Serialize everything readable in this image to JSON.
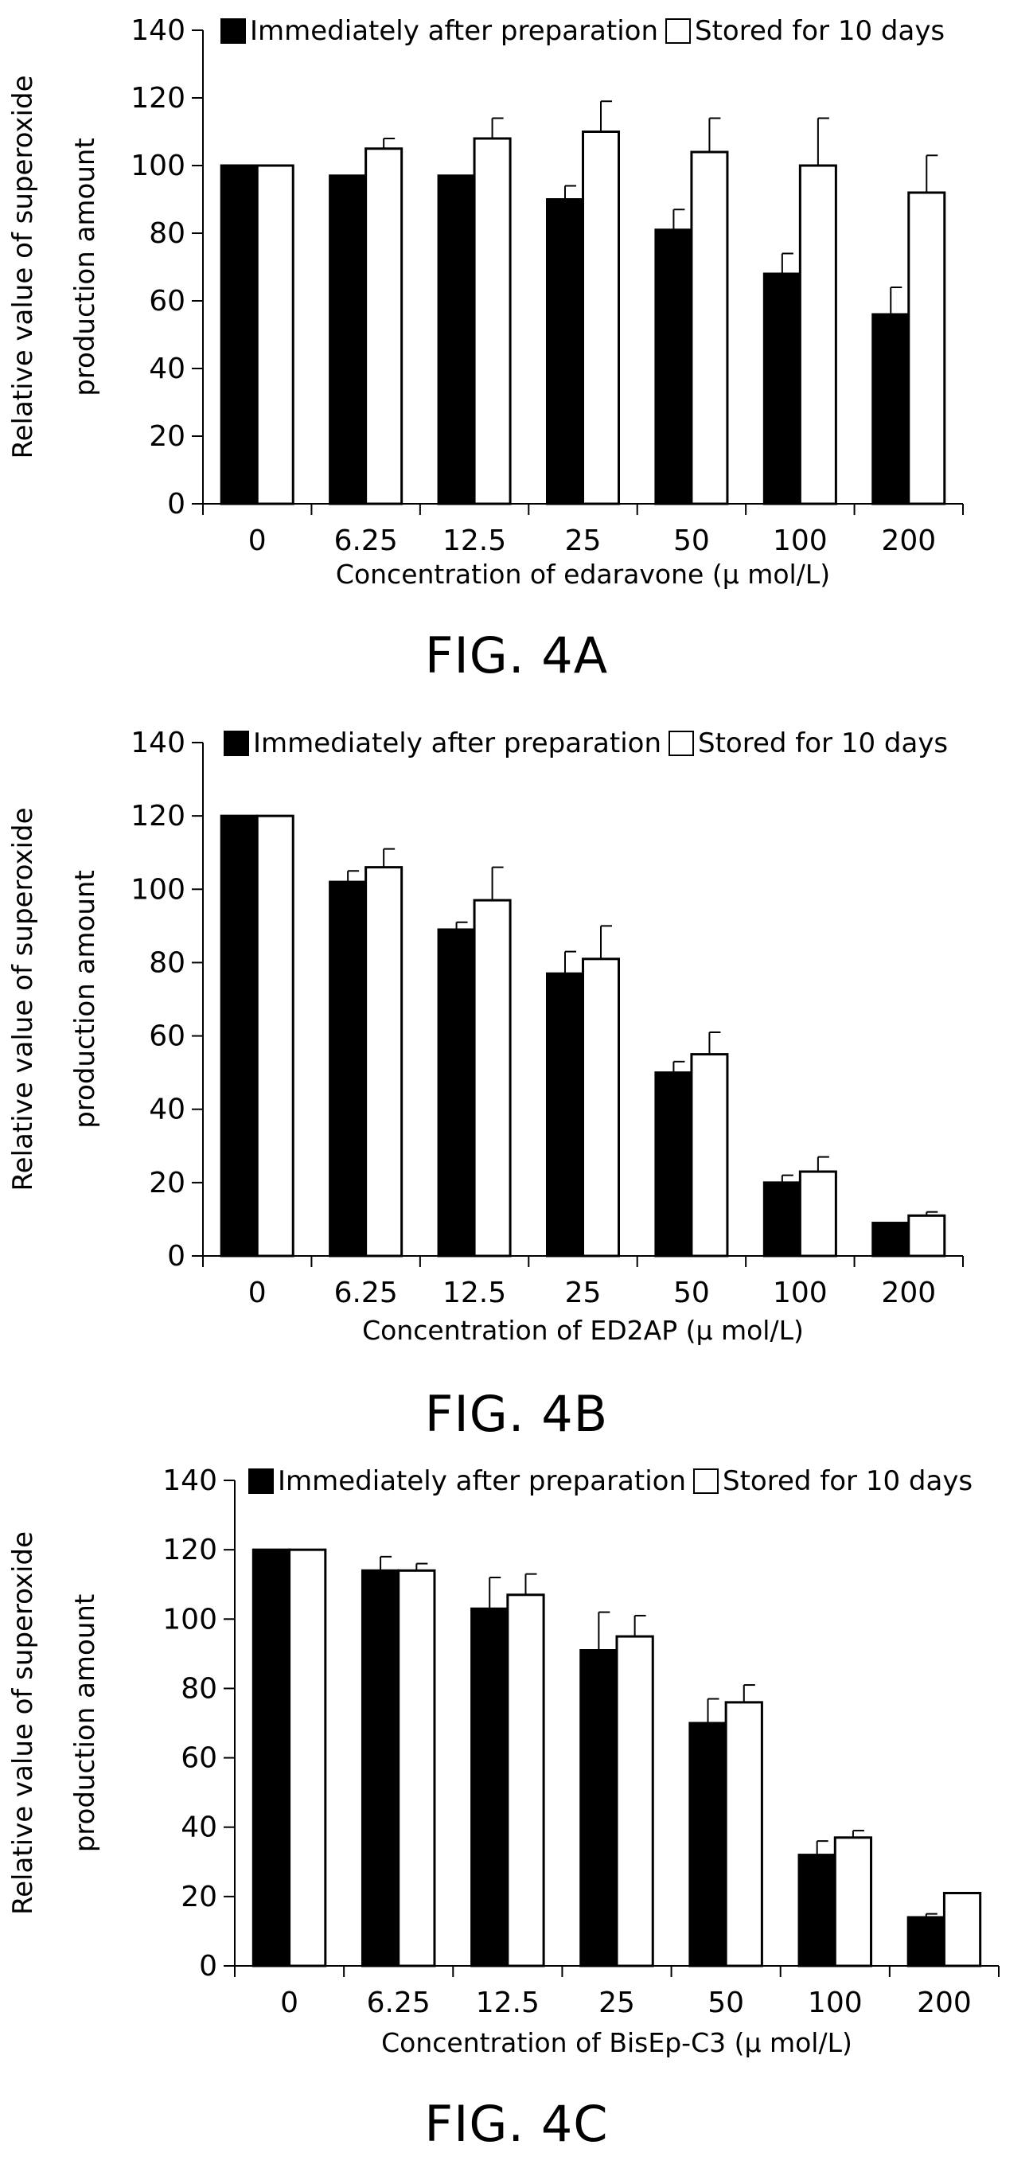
{
  "chart_data": [
    {
      "type": "bar",
      "figure_label": "FIG. 4A",
      "categories": [
        "0",
        "6.25",
        "12.5",
        "25",
        "50",
        "100",
        "200"
      ],
      "xlabel": "Concentration of edaravone (μ mol/L)",
      "ylabel": [
        "Relative value of superoxide",
        "production amount"
      ],
      "ylim": [
        0,
        140
      ],
      "yticks": [
        "0",
        "20",
        "40",
        "60",
        "80",
        "100",
        "120",
        "140"
      ],
      "legend_position": "top",
      "series": [
        {
          "name": "Immediately after preparation",
          "color": "#000000",
          "values": [
            100,
            97,
            97,
            90,
            81,
            68,
            56
          ],
          "errors": [
            0,
            0,
            0,
            4,
            6,
            6,
            8
          ]
        },
        {
          "name": "Stored for 10 days",
          "color": "#ffffff",
          "values": [
            100,
            105,
            108,
            110,
            104,
            100,
            92
          ],
          "errors": [
            0,
            3,
            6,
            9,
            10,
            14,
            11
          ]
        }
      ]
    },
    {
      "type": "bar",
      "figure_label": "FIG. 4B",
      "categories": [
        "0",
        "6.25",
        "12.5",
        "25",
        "50",
        "100",
        "200"
      ],
      "xlabel": "Concentration of ED2AP (μ mol/L)",
      "ylabel": [
        "Relative value of superoxide",
        "production amount"
      ],
      "ylim": [
        0,
        140
      ],
      "yticks": [
        "0",
        "20",
        "40",
        "60",
        "80",
        "100",
        "120",
        "140"
      ],
      "legend_position": "top",
      "series": [
        {
          "name": "Immediately after preparation",
          "color": "#000000",
          "values": [
            120,
            102,
            89,
            77,
            50,
            20,
            9
          ],
          "errors": [
            0,
            3,
            2,
            6,
            3,
            2,
            0
          ]
        },
        {
          "name": "Stored for 10 days",
          "color": "#ffffff",
          "values": [
            120,
            106,
            97,
            81,
            55,
            23,
            11
          ],
          "errors": [
            0,
            5,
            9,
            9,
            6,
            4,
            1
          ]
        }
      ]
    },
    {
      "type": "bar",
      "figure_label": "FIG. 4C",
      "categories": [
        "0",
        "6.25",
        "12.5",
        "25",
        "50",
        "100",
        "200"
      ],
      "xlabel": "Concentration of BisEp-C3 (μ mol/L)",
      "ylabel": [
        "Relative value of superoxide",
        "production amount"
      ],
      "ylim": [
        0,
        140
      ],
      "yticks": [
        "0",
        "20",
        "40",
        "60",
        "80",
        "100",
        "120",
        "140"
      ],
      "legend_position": "top",
      "series": [
        {
          "name": "Immediately after preparation",
          "color": "#000000",
          "values": [
            120,
            114,
            103,
            91,
            70,
            32,
            14
          ],
          "errors": [
            0,
            4,
            9,
            11,
            7,
            4,
            1
          ]
        },
        {
          "name": "Stored for 10 days",
          "color": "#ffffff",
          "values": [
            120,
            114,
            107,
            95,
            76,
            37,
            21
          ],
          "errors": [
            0,
            2,
            6,
            6,
            5,
            2,
            0
          ]
        }
      ]
    }
  ]
}
